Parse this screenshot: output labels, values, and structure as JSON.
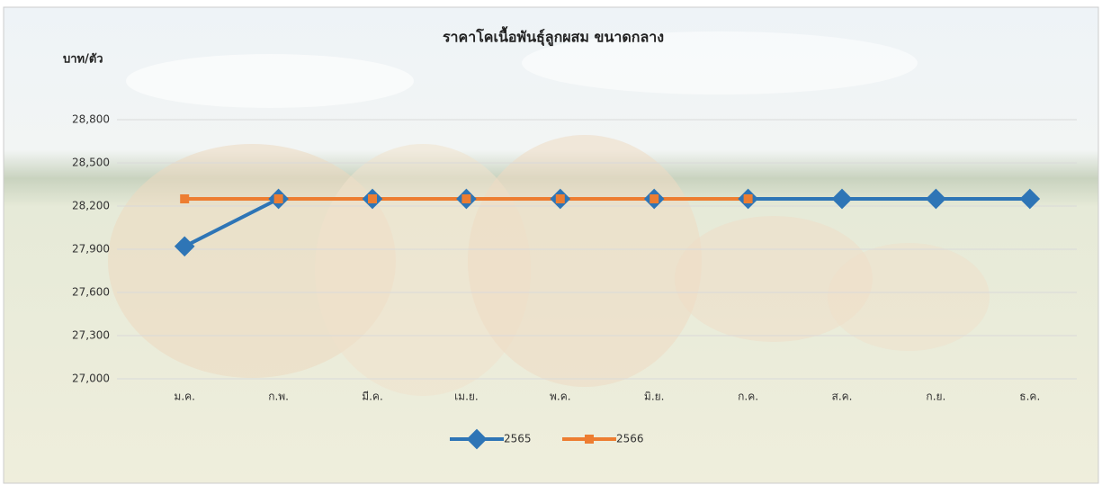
{
  "chart_data": {
    "type": "line",
    "title": "ราคาโคเนื้อพันธุ์ลูกผสม ขนาดกลาง",
    "y_label": "บาท/ตัว",
    "categories": [
      "ม.ค.",
      "ก.พ.",
      "มี.ค.",
      "เม.ย.",
      "พ.ค.",
      "มิ.ย.",
      "ก.ค.",
      "ส.ค.",
      "ก.ย.",
      "ธ.ค."
    ],
    "series": [
      {
        "name": "2565",
        "color": "#2e75b6",
        "values": [
          27920,
          28250,
          28250,
          28250,
          28250,
          28250,
          28250,
          28250,
          28250,
          28250
        ]
      },
      {
        "name": "2566",
        "color": "#ed7d31",
        "values": [
          28250,
          28250,
          28250,
          28250,
          28250,
          28250,
          28250,
          null,
          null,
          null
        ]
      }
    ],
    "ylim": [
      27000,
      28800
    ],
    "yticks": [
      {
        "value": 27000,
        "label": "27,000"
      },
      {
        "value": 27300,
        "label": "27,300"
      },
      {
        "value": 27600,
        "label": "27,600"
      },
      {
        "value": 27900,
        "label": "27,900"
      },
      {
        "value": 28200,
        "label": "28,200"
      },
      {
        "value": 28500,
        "label": "28,500"
      },
      {
        "value": 28800,
        "label": "28,800"
      }
    ],
    "grid": true,
    "legend": "bottom"
  }
}
